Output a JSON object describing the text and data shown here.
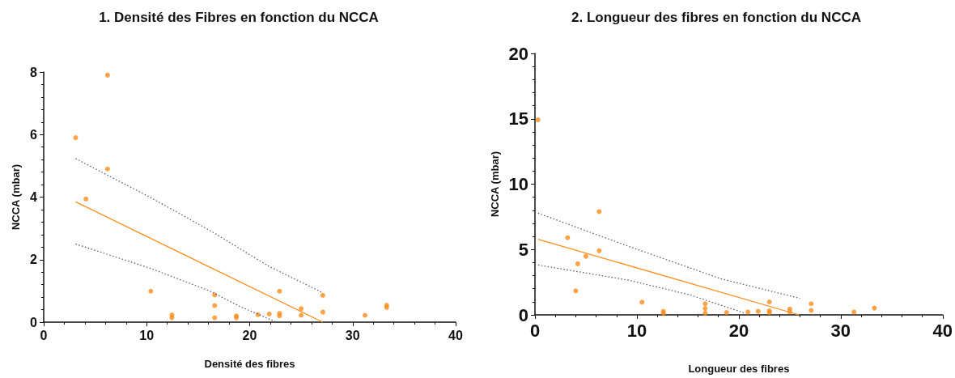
{
  "chart_data": [
    {
      "type": "scatter",
      "title": "1. Densité des Fibres en fonction du NCCA",
      "xlabel": "Densité des fibres",
      "ylabel": "NCCA (mbar)",
      "xlim": [
        0,
        40
      ],
      "ylim": [
        0,
        8
      ],
      "xticks": [
        0,
        10,
        20,
        30,
        40
      ],
      "yticks": [
        0,
        2,
        4,
        6,
        8
      ],
      "grid": false,
      "marker": "circle",
      "series": [
        {
          "type": "scatter",
          "color": "#ff8c1a",
          "x": [
            3.1,
            6.2,
            6.2,
            4.1,
            10.4,
            12.45,
            12.45,
            16.6,
            16.6,
            16.6,
            18.7,
            18.7,
            20.8,
            21.9,
            22.9,
            22.9,
            22.9,
            25,
            25,
            27.1,
            27.1,
            31.2,
            33.3,
            33.3
          ],
          "values": [
            5.9,
            7.9,
            4.9,
            3.94,
            0.99,
            0.23,
            0.14,
            0.87,
            0.53,
            0.14,
            0.2,
            0.14,
            0.24,
            0.26,
            0.99,
            0.28,
            0.2,
            0.43,
            0.22,
            0.86,
            0.32,
            0.22,
            0.54,
            0.47
          ]
        },
        {
          "type": "line",
          "color": "#ff8c1a",
          "line_style": "solid",
          "marker": "none",
          "x": [
            3.1,
            27.1
          ],
          "values": [
            3.85,
            0
          ]
        },
        {
          "type": "line",
          "color": "#555555",
          "line_style": "dotted",
          "marker": "none",
          "x": [
            3.1,
            10.3,
            16.1,
            21.9,
            27.1
          ],
          "values": [
            5.23,
            4.0,
            2.94,
            1.78,
            0.94
          ]
        },
        {
          "type": "line",
          "color": "#555555",
          "line_style": "dotted",
          "marker": "none",
          "x": [
            3.1,
            10.3,
            16.1,
            19,
            22.6
          ],
          "values": [
            2.5,
            1.73,
            1.0,
            0.51,
            0
          ]
        }
      ]
    },
    {
      "type": "scatter",
      "title": "2. Longueur des fibres en fonction du NCCA",
      "xlabel": "Longueur des fibres",
      "ylabel": "NCCA (mbar)",
      "xlim": [
        0,
        40
      ],
      "ylim": [
        0,
        20
      ],
      "xticks": [
        0,
        10,
        20,
        30,
        40
      ],
      "yticks": [
        0,
        5,
        10,
        15,
        20
      ],
      "grid": false,
      "marker": "circle",
      "series": [
        {
          "type": "scatter",
          "color": "#ff8c1a",
          "x": [
            0.3,
            3.2,
            6.3,
            6.3,
            5.0,
            4.2,
            4.0,
            10.5,
            12.6,
            12.6,
            16.7,
            16.7,
            16.7,
            18.8,
            20.9,
            21.9,
            23.0,
            23.0,
            23.0,
            25.0,
            25.0,
            27.1,
            27.1,
            31.3,
            33.3
          ],
          "values": [
            14.92,
            5.9,
            7.9,
            4.9,
            4.48,
            3.91,
            1.84,
            0.97,
            0.27,
            0.13,
            0.85,
            0.49,
            0.13,
            0.18,
            0.22,
            0.27,
            0.99,
            0.31,
            0.18,
            0.45,
            0.22,
            0.85,
            0.34,
            0.22,
            0.52
          ]
        },
        {
          "type": "line",
          "color": "#ff8c1a",
          "line_style": "solid",
          "marker": "none",
          "x": [
            0.3,
            25.9
          ],
          "values": [
            5.78,
            0
          ]
        },
        {
          "type": "line",
          "color": "#555555",
          "line_style": "dotted",
          "marker": "none",
          "x": [
            0.3,
            9.2,
            18.2,
            26.0
          ],
          "values": [
            7.78,
            5.24,
            2.77,
            1.26
          ]
        },
        {
          "type": "line",
          "color": "#555555",
          "line_style": "dotted",
          "marker": "none",
          "x": [
            0.3,
            9.2,
            15.2,
            20.4,
            20.6
          ],
          "values": [
            3.82,
            2.65,
            1.53,
            0.18,
            0
          ]
        }
      ]
    }
  ]
}
